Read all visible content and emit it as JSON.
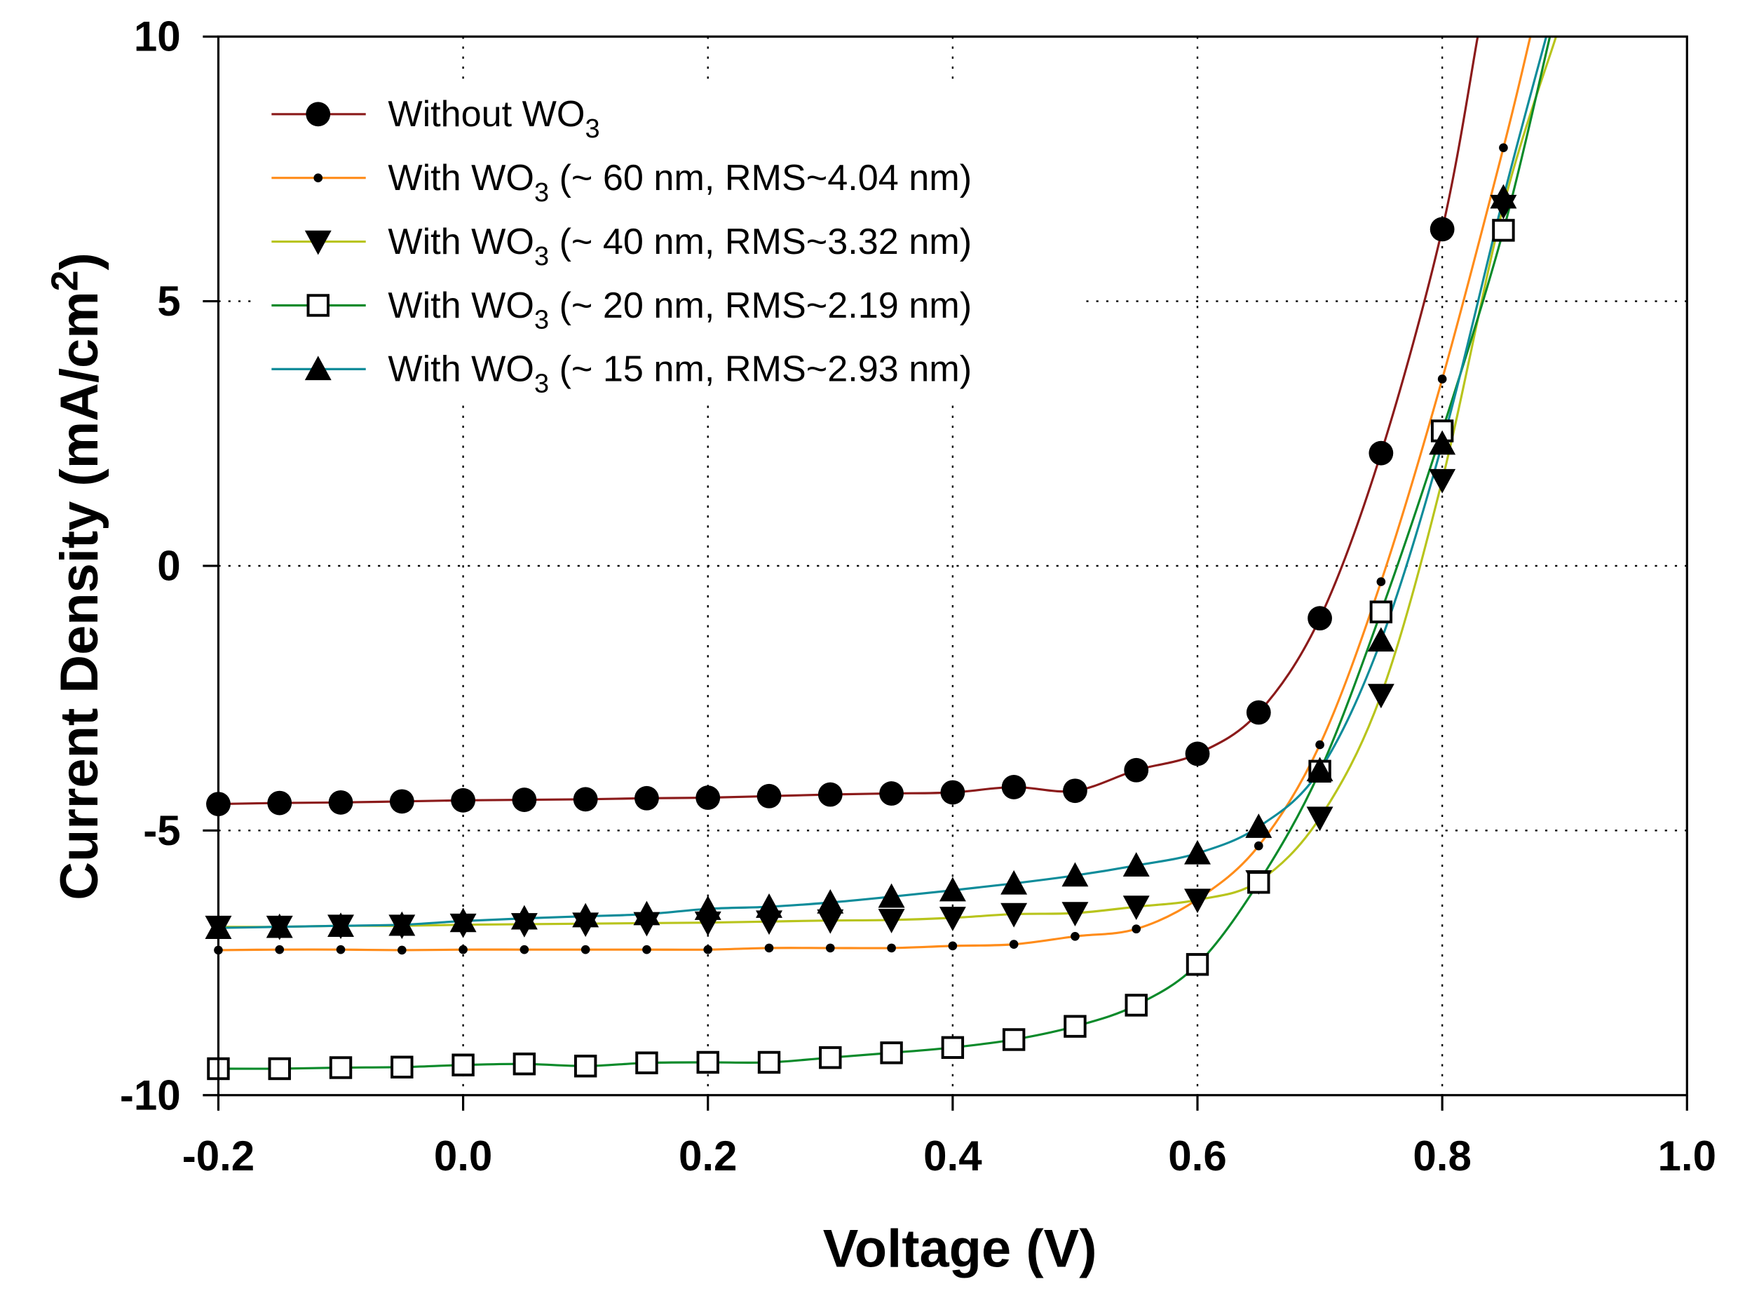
{
  "chart_data": {
    "type": "line",
    "title": "",
    "xlabel": "Voltage (V)",
    "ylabel_parts": [
      "Current Density (mA/cm",
      "2",
      ")"
    ],
    "xlim": [
      -0.2,
      1.0
    ],
    "ylim": [
      -10,
      10
    ],
    "xticks": [
      "-0.2",
      "0.0",
      "0.2",
      "0.4",
      "0.6",
      "0.8",
      "1.0"
    ],
    "xtick_values": [
      -0.2,
      0.0,
      0.2,
      0.4,
      0.6,
      0.8,
      1.0
    ],
    "yticks": [
      "-10",
      "-5",
      "0",
      "5",
      "10"
    ],
    "ytick_values": [
      -10,
      -5,
      0,
      5,
      10
    ],
    "grid": "dotted",
    "legend_position": "top-left",
    "x": [
      -0.2,
      -0.15,
      -0.1,
      -0.05,
      0.0,
      0.05,
      0.1,
      0.15,
      0.2,
      0.25,
      0.3,
      0.35,
      0.4,
      0.45,
      0.5,
      0.55,
      0.6,
      0.65,
      0.7,
      0.75,
      0.8,
      0.85
    ],
    "series": [
      {
        "name_parts": [
          "Without WO",
          "3",
          ""
        ],
        "color": "#8b1a1a",
        "marker": "circle",
        "values": [
          -4.5,
          -4.48,
          -4.47,
          -4.45,
          -4.43,
          -4.42,
          -4.41,
          -4.39,
          -4.38,
          -4.35,
          -4.32,
          -4.3,
          -4.28,
          -4.18,
          -4.25,
          -3.86,
          -3.55,
          -2.77,
          -0.99,
          2.13,
          6.36,
          null
        ],
        "line_end": [
          0.829,
          10
        ]
      },
      {
        "name_parts": [
          "With WO",
          "3",
          " (~ 60 nm, RMS~4.04 nm)"
        ],
        "color": "#ff8c1a",
        "marker": "dot",
        "values": [
          -7.26,
          -7.25,
          -7.25,
          -7.26,
          -7.25,
          -7.25,
          -7.25,
          -7.25,
          -7.25,
          -7.22,
          -7.22,
          -7.22,
          -7.18,
          -7.15,
          -7.0,
          -6.86,
          -6.3,
          -5.29,
          -3.38,
          -0.3,
          3.53,
          7.9
        ],
        "line_end": [
          0.872,
          10
        ]
      },
      {
        "name_parts": [
          "With WO",
          "3",
          " (~ 40 nm, RMS~3.32 nm)"
        ],
        "color": "#b8c41c",
        "marker": "triangle-down",
        "values": [
          -6.82,
          -6.82,
          -6.8,
          -6.8,
          -6.78,
          -6.77,
          -6.76,
          -6.75,
          -6.74,
          -6.72,
          -6.7,
          -6.69,
          -6.65,
          -6.58,
          -6.56,
          -6.44,
          -6.31,
          -5.96,
          -4.76,
          -2.44,
          1.62,
          6.8
        ],
        "line_end": [
          0.893,
          10
        ]
      },
      {
        "name_parts": [
          "With WO",
          "3",
          " (~ 20 nm, RMS~2.19 nm)"
        ],
        "color": "#0a8a2a",
        "marker": "square-open",
        "values": [
          -9.5,
          -9.5,
          -9.48,
          -9.47,
          -9.43,
          -9.41,
          -9.45,
          -9.39,
          -9.38,
          -9.38,
          -9.29,
          -9.2,
          -9.1,
          -8.95,
          -8.7,
          -8.3,
          -7.53,
          -5.98,
          -3.88,
          -0.87,
          2.55,
          6.34
        ],
        "line_end": [
          0.888,
          10
        ]
      },
      {
        "name_parts": [
          "With WO",
          "3",
          " (~ 15 nm, RMS~2.93 nm)"
        ],
        "color": "#0e8c9a",
        "marker": "triangle-up",
        "values": [
          -6.84,
          -6.82,
          -6.8,
          -6.78,
          -6.71,
          -6.66,
          -6.62,
          -6.58,
          -6.48,
          -6.44,
          -6.36,
          -6.25,
          -6.13,
          -6.0,
          -5.85,
          -5.66,
          -5.43,
          -4.93,
          -3.86,
          -1.41,
          2.31,
          6.96
        ],
        "line_end": [
          0.885,
          10
        ]
      }
    ]
  }
}
